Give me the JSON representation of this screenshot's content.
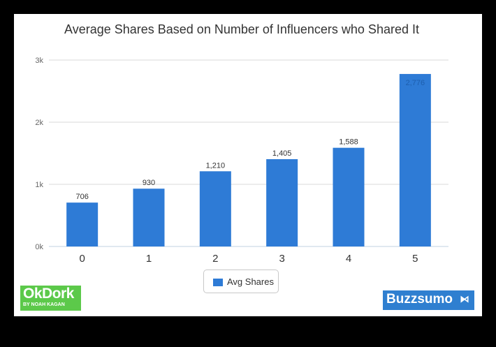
{
  "chart_data": {
    "type": "bar",
    "title": "Average Shares Based on Number of Influencers who Shared It",
    "xlabel": "",
    "ylabel": "",
    "categories": [
      "0",
      "1",
      "2",
      "3",
      "4",
      "5"
    ],
    "series": [
      {
        "name": "Avg Shares",
        "values": [
          706,
          930,
          1210,
          1405,
          1588,
          2776
        ],
        "labels": [
          "706",
          "930",
          "1,210",
          "1,405",
          "1,588",
          "2,776"
        ],
        "color": "#2e7bd6"
      }
    ],
    "ylim": [
      0,
      3000
    ],
    "yticks": [
      0,
      1000,
      2000,
      3000
    ],
    "ytick_labels": [
      "0k",
      "1k",
      "2k",
      "3k"
    ],
    "grid": true,
    "legend": "bottom-center"
  },
  "logos": {
    "okdork_main": "OkDork",
    "okdork_sub": "BY NOAH KAGAN",
    "buzzsumo": "Buzzsumo",
    "buzzsumo_icon": "wifi-signal-icon"
  },
  "colors": {
    "bar": "#2e7bd6",
    "okdork_bg": "#5cc94a",
    "buzzsumo_bg": "#2f7fd0"
  }
}
